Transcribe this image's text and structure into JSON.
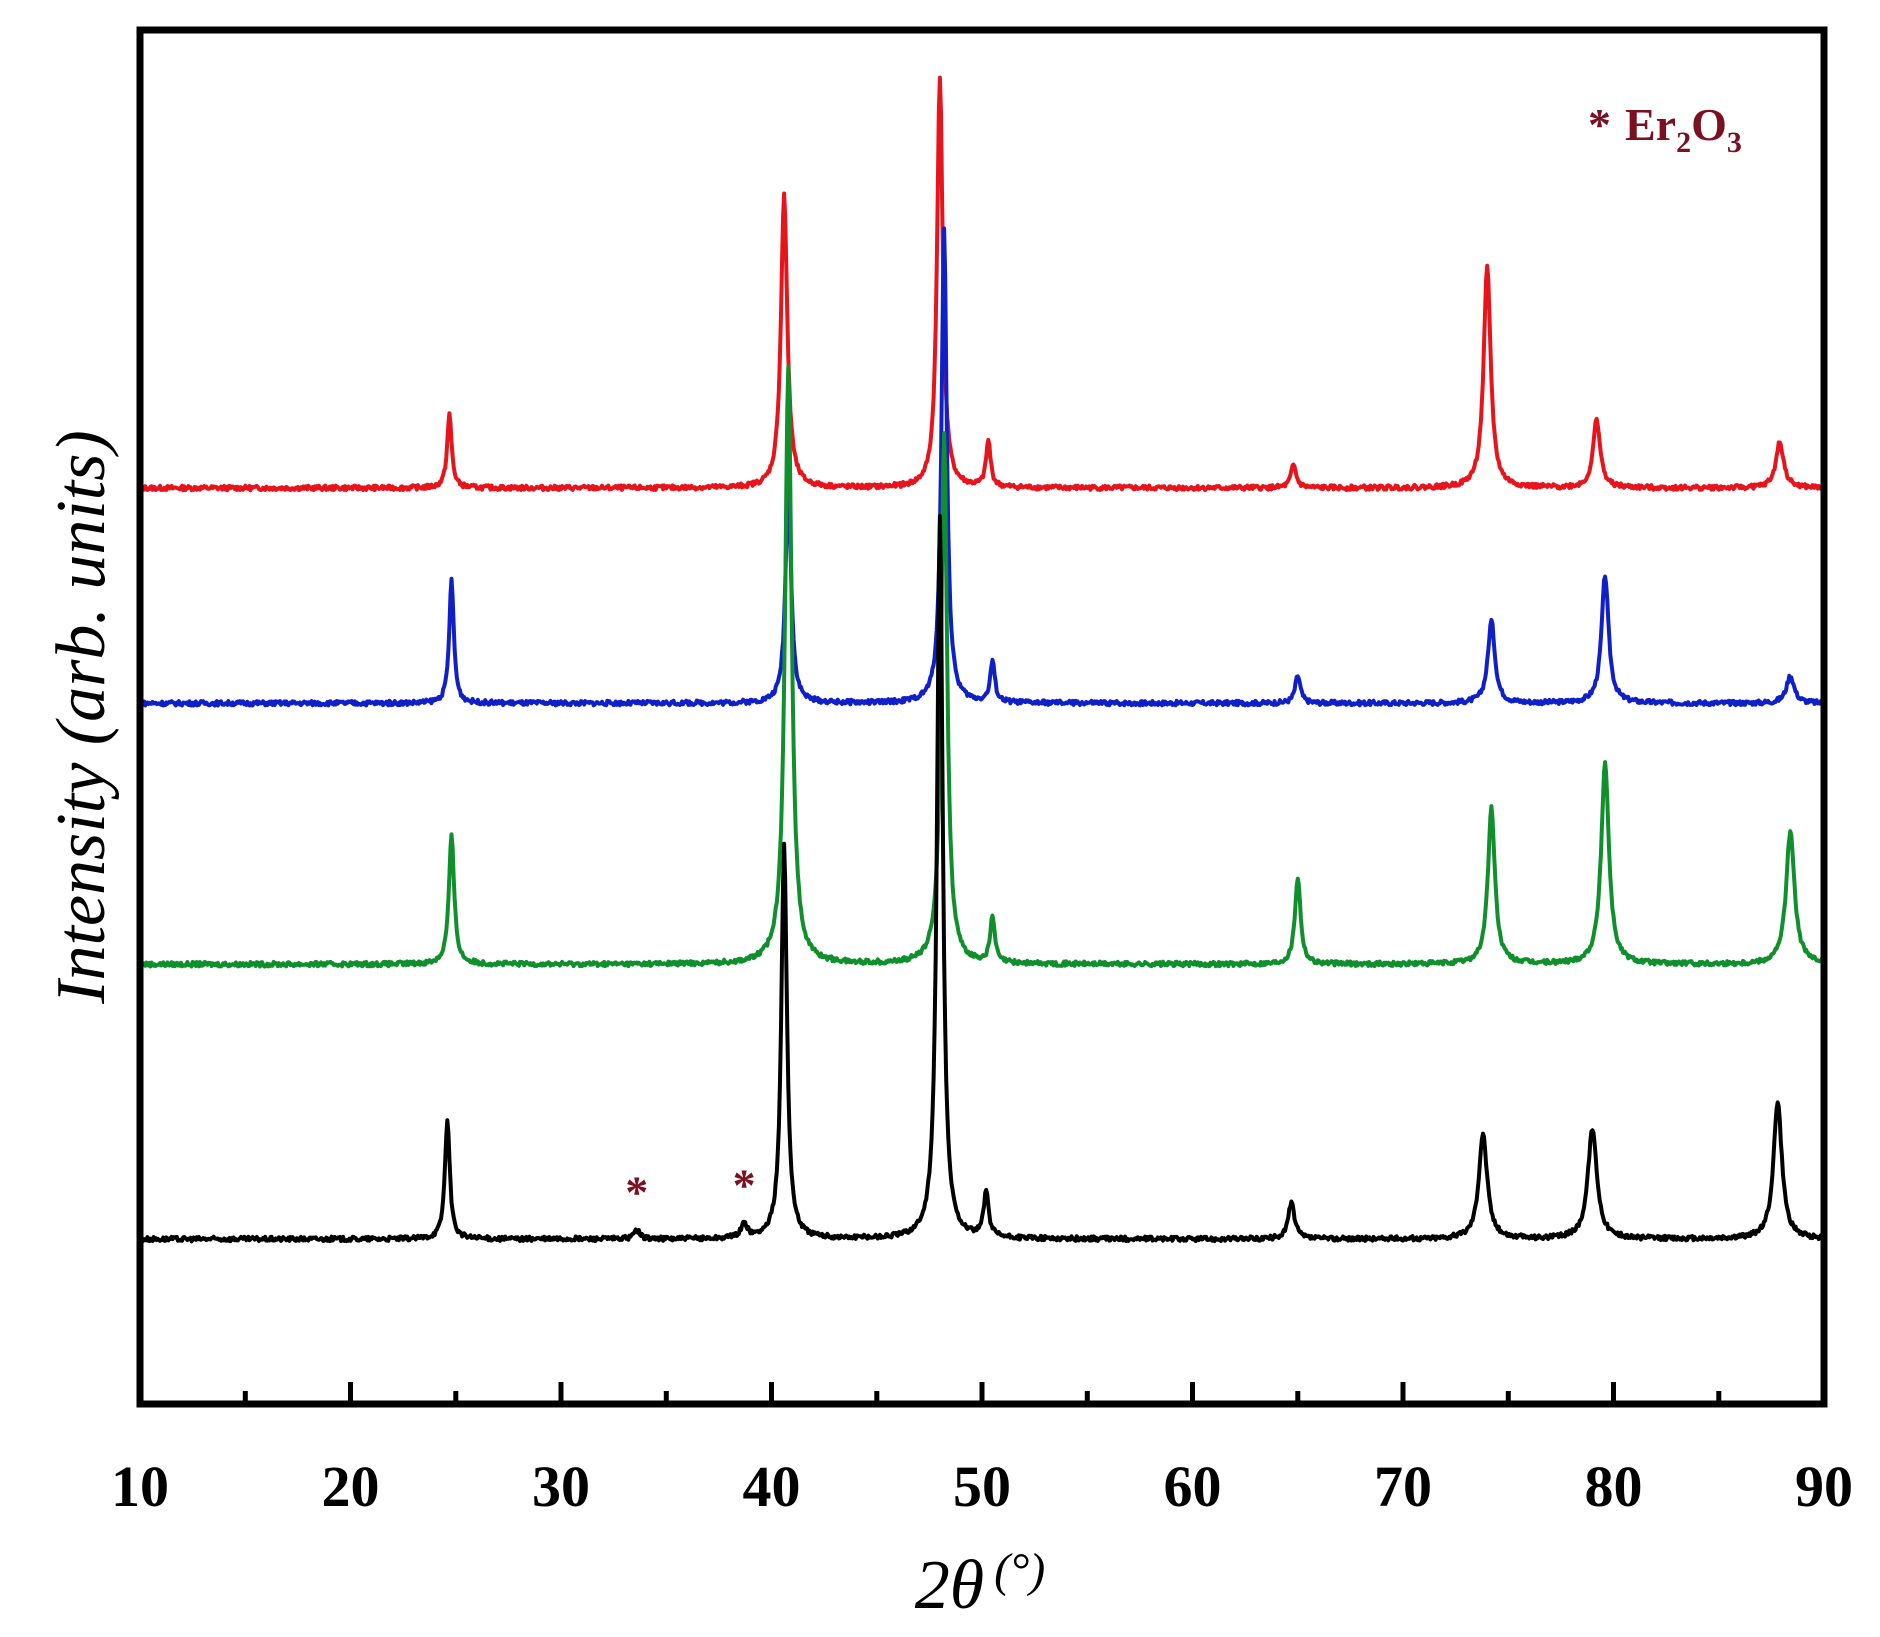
{
  "chart_data": {
    "type": "line",
    "xlabel": "2θ (°)",
    "xlabel_main": "2θ",
    "xlabel_unit": "(°)",
    "ylabel": "Intensity (arb. units)",
    "xlim": [
      10,
      90
    ],
    "xticks": [
      "10",
      "20",
      "30",
      "40",
      "50",
      "60",
      "70",
      "80",
      "90"
    ],
    "y_ticks_shown": false,
    "grid": false,
    "legend_position": "top-right",
    "annotation": {
      "marker": "*",
      "label_prefix": "Er",
      "label_sub1": "2",
      "label_mid": "O",
      "label_sub2": "3",
      "color": "#7a1020",
      "marked_peaks_x": [
        33.6,
        38.7
      ]
    },
    "series": [
      {
        "color": "#e8141c",
        "offset": 8.2,
        "peaks": [
          [
            24.7,
            0.8,
            0.13
          ],
          [
            40.6,
            3.2,
            0.18
          ],
          [
            48.0,
            4.5,
            0.16
          ],
          [
            50.3,
            0.5,
            0.13
          ],
          [
            64.8,
            0.25,
            0.15
          ],
          [
            74.0,
            2.4,
            0.2
          ],
          [
            79.2,
            0.75,
            0.2
          ],
          [
            87.9,
            0.5,
            0.22
          ]
        ]
      },
      {
        "color": "#1020c8",
        "offset": 5.85,
        "peaks": [
          [
            24.8,
            1.35,
            0.13
          ],
          [
            40.8,
            2.4,
            0.16
          ],
          [
            48.2,
            5.2,
            0.15
          ],
          [
            50.5,
            0.45,
            0.13
          ],
          [
            65.0,
            0.3,
            0.15
          ],
          [
            74.2,
            0.9,
            0.2
          ],
          [
            79.6,
            1.4,
            0.2
          ],
          [
            88.4,
            0.3,
            0.22
          ]
        ]
      },
      {
        "color": "#10902c",
        "offset": 3.0,
        "peaks": [
          [
            24.8,
            1.4,
            0.15
          ],
          [
            40.8,
            6.5,
            0.19
          ],
          [
            48.2,
            5.8,
            0.17
          ],
          [
            50.5,
            0.5,
            0.13
          ],
          [
            65.0,
            0.95,
            0.16
          ],
          [
            74.2,
            1.7,
            0.2
          ],
          [
            79.6,
            2.2,
            0.22
          ],
          [
            88.4,
            1.45,
            0.24
          ]
        ]
      },
      {
        "color": "#000000",
        "offset": 0.0,
        "peaks": [
          [
            24.6,
            1.3,
            0.14
          ],
          [
            33.6,
            0.1,
            0.16
          ],
          [
            38.7,
            0.15,
            0.18
          ],
          [
            40.6,
            4.3,
            0.16
          ],
          [
            48.0,
            7.9,
            0.16
          ],
          [
            50.2,
            0.5,
            0.14
          ],
          [
            64.7,
            0.4,
            0.18
          ],
          [
            73.8,
            1.15,
            0.24
          ],
          [
            79.0,
            1.2,
            0.26
          ],
          [
            87.8,
            1.5,
            0.24
          ]
        ]
      }
    ]
  }
}
